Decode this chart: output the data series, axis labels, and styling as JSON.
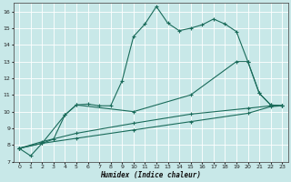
{
  "xlabel": "Humidex (Indice chaleur)",
  "bg_color": "#c8e8e8",
  "grid_color": "#b0d0d0",
  "line_color": "#1a6b5a",
  "xlim": [
    -0.5,
    23.5
  ],
  "ylim": [
    7,
    16.5
  ],
  "yticks": [
    7,
    8,
    9,
    10,
    11,
    12,
    13,
    14,
    15,
    16
  ],
  "xticks": [
    0,
    1,
    2,
    3,
    4,
    5,
    6,
    7,
    8,
    9,
    10,
    11,
    12,
    13,
    14,
    15,
    16,
    17,
    18,
    19,
    20,
    21,
    22,
    23
  ],
  "series1": [
    [
      0,
      7.8
    ],
    [
      1,
      7.35
    ],
    [
      2,
      8.1
    ],
    [
      3,
      8.35
    ],
    [
      4,
      9.8
    ],
    [
      5,
      10.4
    ],
    [
      6,
      10.45
    ],
    [
      7,
      10.35
    ],
    [
      8,
      10.35
    ],
    [
      9,
      11.85
    ],
    [
      10,
      14.5
    ],
    [
      11,
      15.25
    ],
    [
      12,
      16.3
    ],
    [
      13,
      15.3
    ],
    [
      14,
      14.85
    ],
    [
      15,
      15.0
    ],
    [
      16,
      15.2
    ],
    [
      17,
      15.55
    ],
    [
      18,
      15.25
    ],
    [
      19,
      14.8
    ],
    [
      20,
      13.0
    ],
    [
      21,
      11.1
    ],
    [
      22,
      10.4
    ],
    [
      23,
      10.35
    ]
  ],
  "series2": [
    [
      0,
      7.8
    ],
    [
      2,
      8.1
    ],
    [
      4,
      9.8
    ],
    [
      5,
      10.4
    ],
    [
      10,
      10.0
    ],
    [
      15,
      11.0
    ],
    [
      19,
      13.0
    ],
    [
      20,
      13.0
    ],
    [
      21,
      11.1
    ],
    [
      22,
      10.4
    ],
    [
      23,
      10.35
    ]
  ],
  "series3": [
    [
      0,
      7.8
    ],
    [
      2,
      8.2
    ],
    [
      5,
      8.7
    ],
    [
      10,
      9.3
    ],
    [
      15,
      9.85
    ],
    [
      20,
      10.2
    ],
    [
      22,
      10.35
    ],
    [
      23,
      10.35
    ]
  ],
  "series4": [
    [
      0,
      7.8
    ],
    [
      2,
      8.1
    ],
    [
      5,
      8.4
    ],
    [
      10,
      8.9
    ],
    [
      15,
      9.4
    ],
    [
      20,
      9.9
    ],
    [
      22,
      10.3
    ],
    [
      23,
      10.35
    ]
  ]
}
